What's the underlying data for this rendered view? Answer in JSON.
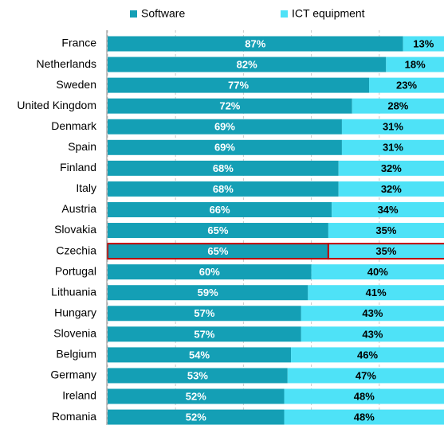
{
  "chart_data": {
    "type": "stacked_barh",
    "categories": [
      "France",
      "Netherlands",
      "Sweden",
      "United Kingdom",
      "Denmark",
      "Spain",
      "Finland",
      "Italy",
      "Austria",
      "Slovakia",
      "Czechia",
      "Portugal",
      "Lithuania",
      "Hungary",
      "Slovenia",
      "Belgium",
      "Germany",
      "Ireland",
      "Romania"
    ],
    "series": [
      {
        "name": "Software",
        "color": "#149fb5",
        "values": [
          87,
          82,
          77,
          72,
          69,
          69,
          68,
          68,
          66,
          65,
          65,
          60,
          59,
          57,
          57,
          54,
          53,
          52,
          52
        ],
        "value_labels": [
          "87%",
          "82%",
          "77%",
          "72%",
          "69%",
          "69%",
          "68%",
          "68%",
          "66%",
          "65%",
          "65%",
          "60%",
          "59%",
          "57%",
          "57%",
          "54%",
          "53%",
          "52%",
          "52%"
        ]
      },
      {
        "name": "ICT equipment",
        "color": "#4ee2f7",
        "values": [
          13,
          18,
          23,
          28,
          31,
          31,
          32,
          32,
          34,
          35,
          35,
          40,
          41,
          43,
          43,
          46,
          47,
          48,
          48
        ],
        "value_labels": [
          "13%",
          "18%",
          "23%",
          "28%",
          "31%",
          "31%",
          "32%",
          "32%",
          "34%",
          "35%",
          "35%",
          "40%",
          "41%",
          "43%",
          "43%",
          "46%",
          "47%",
          "48%",
          "48%"
        ]
      }
    ],
    "xlim": [
      0,
      100
    ],
    "xticks": [
      0,
      20,
      40,
      60,
      80,
      100
    ],
    "grid": true,
    "highlight": {
      "category": "Czechia",
      "color": "#c00000"
    }
  }
}
